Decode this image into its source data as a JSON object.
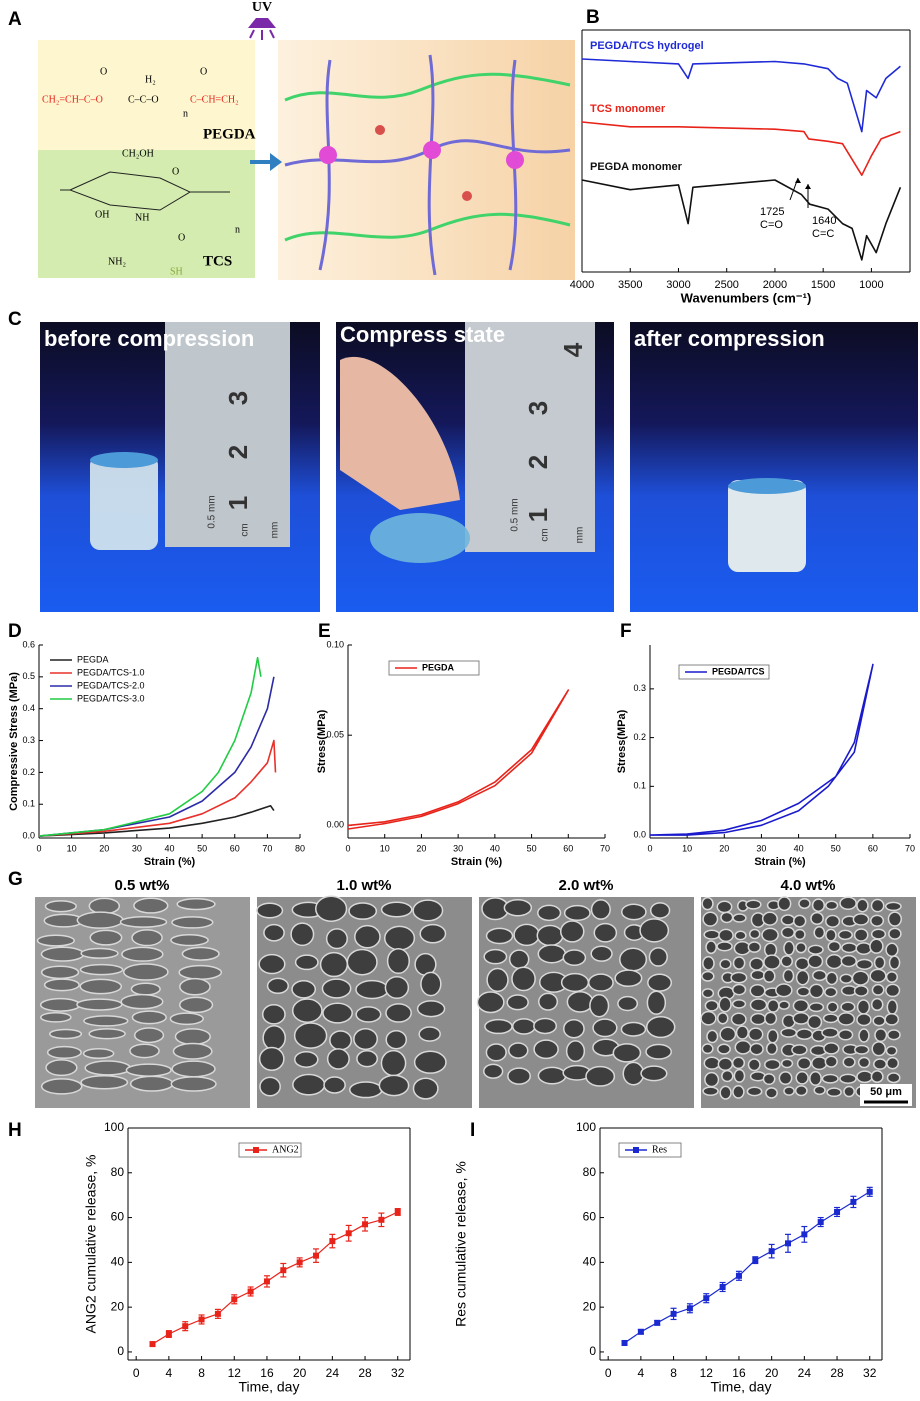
{
  "diagram": {
    "panel": "A",
    "uv": "UV",
    "pegda": "PEGDA",
    "tcs": "TCS",
    "pegda_parts": [
      "O",
      "O",
      "H₂",
      "CH₂=CH–C–O",
      "C–C–O",
      "n",
      "C–CH=CH₂"
    ],
    "tcs_parts": [
      "CH₂OH",
      "O",
      "OH",
      "NH",
      "O",
      "NH₂",
      "SH",
      "n"
    ]
  },
  "photos": {
    "panel": "C",
    "captions": [
      "before compression",
      "Compress state",
      "after compression"
    ],
    "ruler_1": [
      "3",
      "2",
      "1",
      "0.5 mm",
      "cm",
      "mm"
    ],
    "ruler_2": [
      "4",
      "3",
      "2",
      "1",
      "0.5 mm",
      "cm",
      "mm"
    ]
  },
  "sem": {
    "panel": "G",
    "titles": [
      "0.5 wt%",
      "1.0 wt%",
      "2.0 wt%",
      "4.0 wt%"
    ],
    "scale_bar": "50 μm"
  },
  "chart_data": [
    {
      "type": "line",
      "panel": "B",
      "xlabel": "Wavenumbers (cm⁻¹)",
      "xlim": [
        4000,
        600
      ],
      "xticks": [
        4000,
        3500,
        3000,
        2500,
        2000,
        1500,
        1000
      ],
      "ylim": [
        0,
        100
      ],
      "legend": "inline",
      "legend_frame": false,
      "annotations": [
        "1725",
        "C=O",
        "1640",
        "C=C"
      ],
      "series": [
        {
          "name": "PEGDA/TCS hydrogel",
          "color": "#1f2ad6",
          "x": [
            4000,
            3500,
            3000,
            2900,
            2850,
            2000,
            1700,
            1450,
            1350,
            1250,
            1100,
            1050,
            950,
            850,
            700
          ],
          "values": [
            88,
            87,
            86,
            80,
            86,
            87,
            86,
            84,
            80,
            78,
            58,
            75,
            72,
            80,
            85
          ]
        },
        {
          "name": "TCS monomer",
          "color": "#e8231a",
          "x": [
            4000,
            3500,
            3000,
            2000,
            1700,
            1650,
            1450,
            1300,
            1100,
            1000,
            900,
            700
          ],
          "values": [
            62,
            60,
            60,
            59,
            58,
            55,
            54,
            53,
            40,
            48,
            55,
            58
          ]
        },
        {
          "name": "PEGDA monomer",
          "color": "#111111",
          "x": [
            4000,
            3500,
            3000,
            2900,
            2850,
            2000,
            1725,
            1640,
            1450,
            1300,
            1200,
            1100,
            1050,
            950,
            850,
            700
          ],
          "values": [
            38,
            34,
            36,
            20,
            35,
            38,
            32,
            28,
            26,
            20,
            18,
            5,
            15,
            8,
            20,
            35
          ]
        }
      ]
    },
    {
      "type": "line",
      "panel": "D",
      "xlabel": "Strain (%)",
      "ylabel": "Compressive Stress (MPa)",
      "xlim": [
        0,
        80
      ],
      "xticks": [
        0,
        10,
        20,
        30,
        40,
        50,
        60,
        70,
        80
      ],
      "ylim": [
        -0.006,
        0.6
      ],
      "yticks": [
        {
          "value": 0,
          "label": "0.0"
        },
        0.1,
        0.2,
        0.3,
        0.4,
        0.5,
        0.6
      ],
      "legend": "upper left",
      "legend_frame": false,
      "series": [
        {
          "name": "PEGDA",
          "color": "#222222",
          "x": [
            0,
            20,
            40,
            50,
            60,
            65,
            71,
            72
          ],
          "values": [
            0,
            0.01,
            0.025,
            0.04,
            0.06,
            0.075,
            0.095,
            0.08
          ]
        },
        {
          "name": "PEGDA/TCS-1.0",
          "color": "#e8312a",
          "x": [
            0,
            20,
            40,
            50,
            60,
            65,
            70,
            72,
            72.5
          ],
          "values": [
            0,
            0.015,
            0.04,
            0.07,
            0.12,
            0.17,
            0.23,
            0.3,
            0.2
          ]
        },
        {
          "name": "PEGDA/TCS-2.0",
          "color": "#2b2ba8",
          "x": [
            0,
            20,
            40,
            50,
            60,
            65,
            70,
            72
          ],
          "values": [
            0,
            0.02,
            0.06,
            0.11,
            0.2,
            0.28,
            0.4,
            0.5
          ]
        },
        {
          "name": "PEGDA/TCS-3.0",
          "color": "#22cc44",
          "x": [
            0,
            20,
            40,
            50,
            55,
            60,
            65,
            67,
            68
          ],
          "values": [
            0,
            0.02,
            0.07,
            0.14,
            0.2,
            0.3,
            0.45,
            0.56,
            0.5
          ]
        }
      ]
    },
    {
      "type": "line",
      "panel": "E",
      "xlabel": "Strain (%)",
      "ylabel": "Stress(MPa)",
      "xlim": [
        0,
        70
      ],
      "xticks": [
        0,
        10,
        20,
        30,
        40,
        50,
        60,
        70
      ],
      "ylim": [
        -0.007,
        0.1
      ],
      "yticks": [
        {
          "value": 0,
          "label": "0.00"
        },
        0.05,
        {
          "value": 0.1,
          "label": "0.10"
        }
      ],
      "legend": "upper left",
      "legend_frame": true,
      "series": [
        {
          "name": "PEGDA",
          "color": "#e8231a",
          "x": [
            0,
            10,
            20,
            30,
            40,
            50,
            60,
            50,
            40,
            30,
            20,
            10,
            0
          ],
          "values": [
            0,
            0.002,
            0.006,
            0.013,
            0.024,
            0.042,
            0.075,
            0.04,
            0.022,
            0.012,
            0.005,
            0.001,
            -0.002
          ]
        }
      ]
    },
    {
      "type": "line",
      "panel": "F",
      "xlabel": "Strain (%)",
      "ylabel": "Stress(MPa)",
      "xlim": [
        0,
        70
      ],
      "xticks": [
        0,
        10,
        20,
        30,
        40,
        50,
        60,
        70
      ],
      "ylim": [
        -0.006,
        0.39
      ],
      "yticks": [
        {
          "value": 0,
          "label": "0.0"
        },
        0.1,
        0.2,
        0.3
      ],
      "legend": "upper left",
      "legend_frame": true,
      "series": [
        {
          "name": "PEGDA/TCS",
          "color": "#1a1acc",
          "x": [
            0,
            10,
            20,
            30,
            40,
            50,
            55,
            60,
            55,
            48,
            40,
            30,
            20,
            10,
            0
          ],
          "values": [
            0,
            0.002,
            0.01,
            0.03,
            0.065,
            0.12,
            0.19,
            0.35,
            0.17,
            0.1,
            0.05,
            0.02,
            0.005,
            0,
            0
          ]
        }
      ]
    },
    {
      "type": "line",
      "panel": "H",
      "xlabel": "Time, day",
      "ylabel": "ANG2 cumulative release, %",
      "xlim": [
        -1,
        33.5
      ],
      "xticks": [
        0,
        4,
        8,
        12,
        16,
        20,
        24,
        28,
        32
      ],
      "ylim": [
        -3.6,
        100
      ],
      "yticks": [
        0,
        20,
        40,
        60,
        80,
        100
      ],
      "legend": "upper center",
      "legend_frame": true,
      "marker": "square",
      "x": [
        2,
        4,
        6,
        8,
        10,
        12,
        14,
        16,
        18,
        20,
        22,
        24,
        26,
        28,
        30,
        32
      ],
      "series": [
        {
          "name": "ANG2",
          "color": "#e8231a",
          "values": [
            3.5,
            8,
            11.5,
            14.5,
            17,
            23.5,
            27,
            31.5,
            36.5,
            40,
            43,
            49.5,
            53,
            57,
            59,
            62.5
          ],
          "errors": [
            1,
            1.5,
            2,
            2,
            2,
            2,
            2,
            2.5,
            3,
            2,
            3,
            3,
            3.5,
            3,
            3,
            1.5
          ]
        }
      ]
    },
    {
      "type": "line",
      "panel": "I",
      "xlabel": "Time, day",
      "ylabel": "Res cumulative release, %",
      "xlim": [
        -1,
        33.5
      ],
      "xticks": [
        0,
        4,
        8,
        12,
        16,
        20,
        24,
        28,
        32
      ],
      "ylim": [
        -3.6,
        100
      ],
      "yticks": [
        0,
        20,
        40,
        60,
        80,
        100
      ],
      "legend": "upper center",
      "legend_frame": true,
      "marker": "square",
      "x": [
        2,
        4,
        6,
        8,
        10,
        12,
        14,
        16,
        18,
        20,
        22,
        24,
        26,
        28,
        30,
        32
      ],
      "series": [
        {
          "name": "Res",
          "color": "#1a2ad0",
          "values": [
            4,
            9,
            13,
            17,
            19.5,
            24,
            29,
            34,
            41,
            45,
            48.5,
            52.5,
            58,
            62.5,
            67,
            71.5
          ],
          "errors": [
            1,
            1,
            1,
            2.5,
            2,
            2,
            2,
            2,
            1.5,
            3,
            4,
            3.5,
            2,
            2,
            2.5,
            2
          ]
        }
      ]
    }
  ]
}
